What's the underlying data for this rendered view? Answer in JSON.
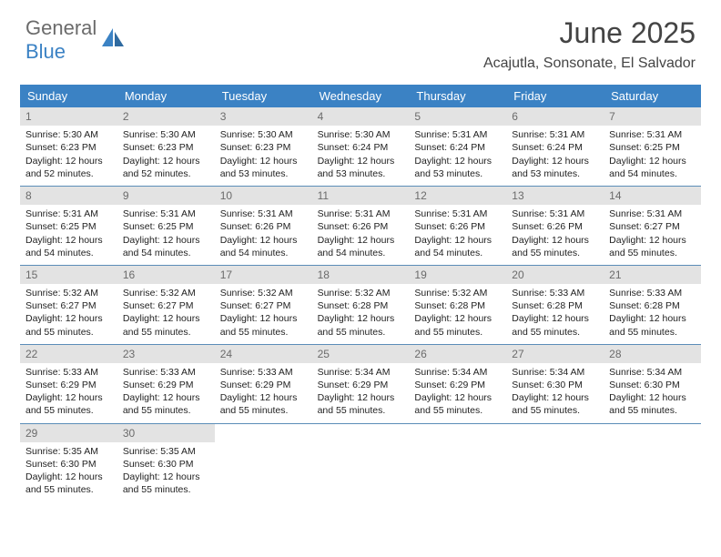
{
  "logo": {
    "part1": "General",
    "part2": "Blue"
  },
  "title": "June 2025",
  "location": "Acajutla, Sonsonate, El Salvador",
  "colors": {
    "header_bg": "#3b82c4",
    "daynum_bg": "#e3e3e3",
    "daynum_fg": "#6b6b6b",
    "border": "#5b8db8",
    "text": "#222222",
    "logo_gray": "#6b6b6b",
    "logo_blue": "#3b82c4"
  },
  "weekdays": [
    "Sunday",
    "Monday",
    "Tuesday",
    "Wednesday",
    "Thursday",
    "Friday",
    "Saturday"
  ],
  "days": [
    {
      "n": "1",
      "sr": "5:30 AM",
      "ss": "6:23 PM",
      "dl": "12 hours and 52 minutes."
    },
    {
      "n": "2",
      "sr": "5:30 AM",
      "ss": "6:23 PM",
      "dl": "12 hours and 52 minutes."
    },
    {
      "n": "3",
      "sr": "5:30 AM",
      "ss": "6:23 PM",
      "dl": "12 hours and 53 minutes."
    },
    {
      "n": "4",
      "sr": "5:30 AM",
      "ss": "6:24 PM",
      "dl": "12 hours and 53 minutes."
    },
    {
      "n": "5",
      "sr": "5:31 AM",
      "ss": "6:24 PM",
      "dl": "12 hours and 53 minutes."
    },
    {
      "n": "6",
      "sr": "5:31 AM",
      "ss": "6:24 PM",
      "dl": "12 hours and 53 minutes."
    },
    {
      "n": "7",
      "sr": "5:31 AM",
      "ss": "6:25 PM",
      "dl": "12 hours and 54 minutes."
    },
    {
      "n": "8",
      "sr": "5:31 AM",
      "ss": "6:25 PM",
      "dl": "12 hours and 54 minutes."
    },
    {
      "n": "9",
      "sr": "5:31 AM",
      "ss": "6:25 PM",
      "dl": "12 hours and 54 minutes."
    },
    {
      "n": "10",
      "sr": "5:31 AM",
      "ss": "6:26 PM",
      "dl": "12 hours and 54 minutes."
    },
    {
      "n": "11",
      "sr": "5:31 AM",
      "ss": "6:26 PM",
      "dl": "12 hours and 54 minutes."
    },
    {
      "n": "12",
      "sr": "5:31 AM",
      "ss": "6:26 PM",
      "dl": "12 hours and 54 minutes."
    },
    {
      "n": "13",
      "sr": "5:31 AM",
      "ss": "6:26 PM",
      "dl": "12 hours and 55 minutes."
    },
    {
      "n": "14",
      "sr": "5:31 AM",
      "ss": "6:27 PM",
      "dl": "12 hours and 55 minutes."
    },
    {
      "n": "15",
      "sr": "5:32 AM",
      "ss": "6:27 PM",
      "dl": "12 hours and 55 minutes."
    },
    {
      "n": "16",
      "sr": "5:32 AM",
      "ss": "6:27 PM",
      "dl": "12 hours and 55 minutes."
    },
    {
      "n": "17",
      "sr": "5:32 AM",
      "ss": "6:27 PM",
      "dl": "12 hours and 55 minutes."
    },
    {
      "n": "18",
      "sr": "5:32 AM",
      "ss": "6:28 PM",
      "dl": "12 hours and 55 minutes."
    },
    {
      "n": "19",
      "sr": "5:32 AM",
      "ss": "6:28 PM",
      "dl": "12 hours and 55 minutes."
    },
    {
      "n": "20",
      "sr": "5:33 AM",
      "ss": "6:28 PM",
      "dl": "12 hours and 55 minutes."
    },
    {
      "n": "21",
      "sr": "5:33 AM",
      "ss": "6:28 PM",
      "dl": "12 hours and 55 minutes."
    },
    {
      "n": "22",
      "sr": "5:33 AM",
      "ss": "6:29 PM",
      "dl": "12 hours and 55 minutes."
    },
    {
      "n": "23",
      "sr": "5:33 AM",
      "ss": "6:29 PM",
      "dl": "12 hours and 55 minutes."
    },
    {
      "n": "24",
      "sr": "5:33 AM",
      "ss": "6:29 PM",
      "dl": "12 hours and 55 minutes."
    },
    {
      "n": "25",
      "sr": "5:34 AM",
      "ss": "6:29 PM",
      "dl": "12 hours and 55 minutes."
    },
    {
      "n": "26",
      "sr": "5:34 AM",
      "ss": "6:29 PM",
      "dl": "12 hours and 55 minutes."
    },
    {
      "n": "27",
      "sr": "5:34 AM",
      "ss": "6:30 PM",
      "dl": "12 hours and 55 minutes."
    },
    {
      "n": "28",
      "sr": "5:34 AM",
      "ss": "6:30 PM",
      "dl": "12 hours and 55 minutes."
    },
    {
      "n": "29",
      "sr": "5:35 AM",
      "ss": "6:30 PM",
      "dl": "12 hours and 55 minutes."
    },
    {
      "n": "30",
      "sr": "5:35 AM",
      "ss": "6:30 PM",
      "dl": "12 hours and 55 minutes."
    }
  ],
  "labels": {
    "sunrise": "Sunrise:",
    "sunset": "Sunset:",
    "daylight": "Daylight:"
  }
}
